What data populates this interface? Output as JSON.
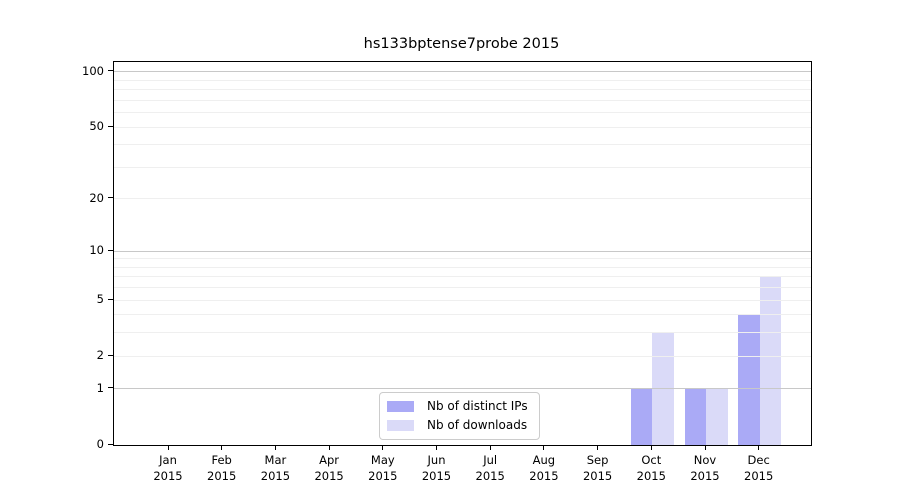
{
  "chart_data": {
    "type": "bar",
    "title": "hs133bptense7probe 2015",
    "categories": [
      "Jan 2015",
      "Feb 2015",
      "Mar 2015",
      "Apr 2015",
      "May 2015",
      "Jun 2015",
      "Jul 2015",
      "Aug 2015",
      "Sep 2015",
      "Oct 2015",
      "Nov 2015",
      "Dec 2015"
    ],
    "x_months": [
      "Jan",
      "Feb",
      "Mar",
      "Apr",
      "May",
      "Jun",
      "Jul",
      "Aug",
      "Sep",
      "Oct",
      "Nov",
      "Dec"
    ],
    "x_year": "2015",
    "series": [
      {
        "name": "Nb of distinct IPs",
        "color": "#aaaaf6",
        "values": [
          0,
          0,
          0,
          0,
          0,
          0,
          0,
          0,
          0,
          1,
          1,
          4
        ]
      },
      {
        "name": "Nb of downloads",
        "color": "#dadaf8",
        "values": [
          0,
          0,
          0,
          0,
          0,
          0,
          0,
          0,
          0,
          3,
          1,
          7
        ]
      }
    ],
    "yscale": "log1p",
    "yticks": [
      0,
      1,
      2,
      5,
      10,
      20,
      50,
      100
    ],
    "ylim": [
      0,
      113
    ],
    "grid": "horizontal",
    "grid_minor_values": [
      2,
      3,
      4,
      5,
      6,
      7,
      8,
      9,
      20,
      30,
      40,
      50,
      60,
      70,
      80,
      90
    ],
    "grid_major_values": [
      1,
      10,
      100
    ],
    "legend_position": "lower center"
  },
  "colors": {
    "bar_distinct_ips": "#aaaaf6",
    "bar_downloads": "#dadaf8",
    "grid_minor": "#efefef",
    "grid_major": "#c8c8c8",
    "axis": "#000000",
    "legend_border": "#cccccc",
    "background": "#ffffff"
  },
  "legend": {
    "items": [
      {
        "label": "Nb of distinct IPs",
        "color": "#aaaaf6"
      },
      {
        "label": "Nb of downloads",
        "color": "#dadaf8"
      }
    ]
  }
}
